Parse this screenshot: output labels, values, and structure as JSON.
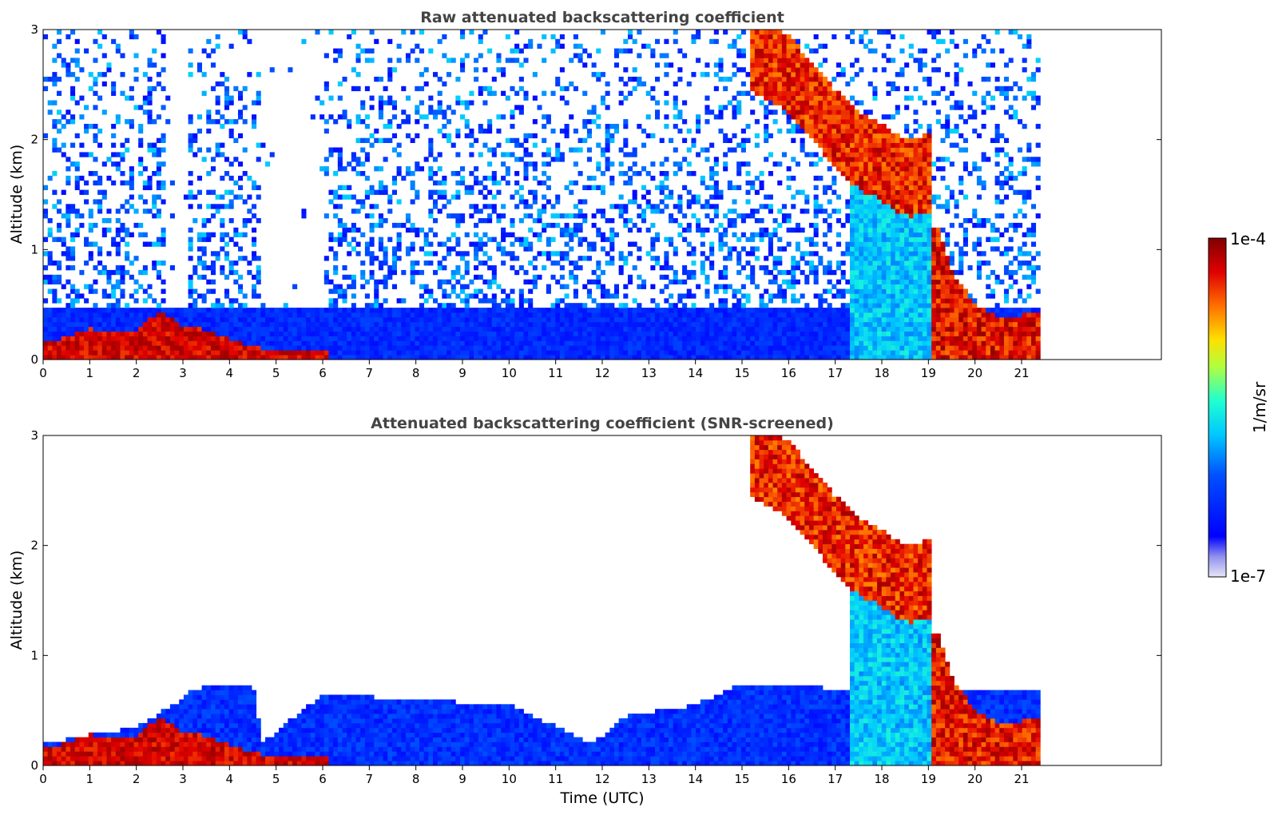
{
  "figure": {
    "colorbar": {
      "max_label": "1e-4",
      "min_label": "1e-7",
      "unit_label": "1/m/sr",
      "scale": "log",
      "range": [
        1e-07,
        0.0001
      ],
      "colormap": "jet"
    }
  },
  "chart_data": [
    {
      "type": "heatmap",
      "title": "Raw attenuated backscattering coefficient",
      "ylabel": "Altitude (km)",
      "xlabel": "",
      "xlim": [
        0,
        24
      ],
      "ylim": [
        0,
        3
      ],
      "x_ticks": [
        "0",
        "1",
        "2",
        "3",
        "4",
        "5",
        "6",
        "7",
        "8",
        "9",
        "10",
        "11",
        "12",
        "13",
        "14",
        "15",
        "16",
        "17",
        "18",
        "19",
        "20",
        "21"
      ],
      "y_ticks": [
        "0",
        "1",
        "2",
        "3"
      ],
      "data_extent_hours": [
        0,
        21.4
      ],
      "features": [
        {
          "desc": "aerosol layer top (km)",
          "x": [
            0,
            0.5,
            1,
            1.5,
            2,
            2.5,
            3,
            3.2,
            4.7,
            5,
            6
          ],
          "y": [
            0.15,
            0.2,
            0.28,
            0.25,
            0.25,
            0.45,
            0.3,
            0.3,
            0.1,
            0.1,
            0.1
          ]
        },
        {
          "desc": "cloud descending (km)",
          "x": [
            15.2,
            16,
            16.6,
            17,
            17.5,
            18,
            18.3,
            18.6,
            19
          ],
          "y": [
            3.0,
            2.8,
            2.5,
            2.3,
            2.1,
            2.0,
            1.9,
            1.85,
            1.9
          ]
        },
        {
          "desc": "low cloud (km)",
          "x": [
            19.2,
            19.5,
            20,
            20.5,
            21,
            21.4
          ],
          "y": [
            1.2,
            0.8,
            0.5,
            0.4,
            0.4,
            0.45
          ]
        }
      ]
    },
    {
      "type": "heatmap",
      "title": "Attenuated backscattering coefficient (SNR-screened)",
      "ylabel": "Altitude (km)",
      "xlabel": "Time (UTC)",
      "xlim": [
        0,
        24
      ],
      "ylim": [
        0,
        3
      ],
      "x_ticks": [
        "0",
        "1",
        "2",
        "3",
        "4",
        "5",
        "6",
        "7",
        "8",
        "9",
        "10",
        "11",
        "12",
        "13",
        "14",
        "15",
        "16",
        "17",
        "18",
        "19",
        "20",
        "21"
      ],
      "y_ticks": [
        "0",
        "1",
        "2",
        "3"
      ],
      "data_extent_hours": [
        0,
        21.4
      ],
      "features": [
        {
          "desc": "boundary layer top (km)",
          "x": [
            0,
            2,
            3,
            3.2,
            4.5,
            4.7,
            6,
            8,
            10,
            11.8,
            12.5,
            14,
            15,
            17
          ],
          "y": [
            0.2,
            0.35,
            0.6,
            0.7,
            0.75,
            0.2,
            0.65,
            0.6,
            0.55,
            0.2,
            0.45,
            0.55,
            0.75,
            0.7
          ]
        },
        {
          "desc": "cloud descending (km)",
          "x": [
            15.2,
            16,
            16.6,
            17,
            17.5,
            18,
            18.3,
            18.6,
            19
          ],
          "y": [
            3.0,
            2.8,
            2.5,
            2.3,
            2.1,
            2.0,
            1.9,
            1.85,
            1.9
          ]
        }
      ]
    }
  ]
}
